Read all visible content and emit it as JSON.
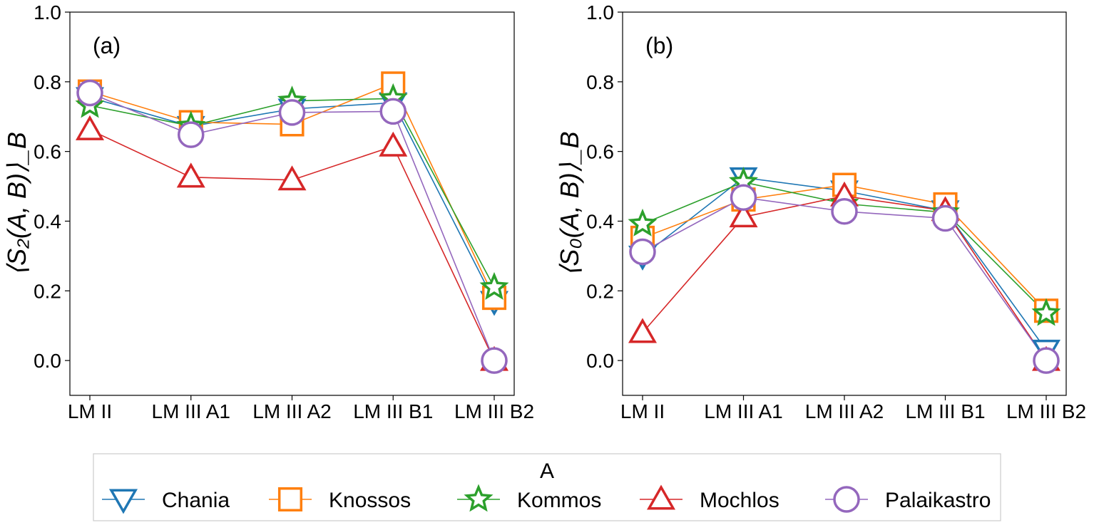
{
  "colors": {
    "Chania": "#1f77b4",
    "Knossos": "#ff7f0e",
    "Kommos": "#2ca02c",
    "Mochlos": "#d62728",
    "Palaikastro": "#9467bd"
  },
  "markers": {
    "Chania": "triangle-down",
    "Knossos": "square",
    "Kommos": "star",
    "Mochlos": "triangle-up",
    "Palaikastro": "circle"
  },
  "legend": {
    "title": "A",
    "placement": "bottom-center"
  },
  "chart_data": [
    {
      "type": "line",
      "panel_label": "(a)",
      "ylabel": "⟨S₂(A, B)⟩_B",
      "ylim": [
        -0.1,
        1.0
      ],
      "yticks": [
        "0.0",
        "0.2",
        "0.4",
        "0.6",
        "0.8",
        "1.0"
      ],
      "categories": [
        "LM II",
        "LM III A1",
        "LM III A2",
        "LM III B1",
        "LM III B2"
      ],
      "grid": false,
      "series": [
        {
          "name": "Chania",
          "values": [
            0.755,
            0.672,
            0.722,
            0.74,
            0.17
          ]
        },
        {
          "name": "Knossos",
          "values": [
            0.772,
            0.684,
            0.678,
            0.795,
            0.18
          ]
        },
        {
          "name": "Kommos",
          "values": [
            0.732,
            0.673,
            0.745,
            0.752,
            0.21
          ]
        },
        {
          "name": "Mochlos",
          "values": [
            0.662,
            0.526,
            0.518,
            0.615,
            0.0
          ]
        },
        {
          "name": "Palaikastro",
          "values": [
            0.768,
            0.648,
            0.712,
            0.715,
            0.0
          ]
        }
      ]
    },
    {
      "type": "line",
      "panel_label": "(b)",
      "ylabel": "⟨S₀(A, B)⟩_B",
      "ylim": [
        -0.1,
        1.0
      ],
      "yticks": [
        "0.0",
        "0.2",
        "0.4",
        "0.6",
        "0.8",
        "1.0"
      ],
      "categories": [
        "LM II",
        "LM III A1",
        "LM III A2",
        "LM III B1",
        "LM III B2"
      ],
      "grid": false,
      "series": [
        {
          "name": "Chania",
          "values": [
            0.3,
            0.525,
            0.487,
            0.43,
            0.03
          ]
        },
        {
          "name": "Knossos",
          "values": [
            0.352,
            0.462,
            0.504,
            0.448,
            0.143
          ]
        },
        {
          "name": "Kommos",
          "values": [
            0.392,
            0.512,
            0.45,
            0.425,
            0.135
          ]
        },
        {
          "name": "Mochlos",
          "values": [
            0.08,
            0.412,
            0.472,
            0.43,
            0.0
          ]
        },
        {
          "name": "Palaikastro",
          "values": [
            0.312,
            0.468,
            0.428,
            0.408,
            0.0
          ]
        }
      ]
    }
  ]
}
